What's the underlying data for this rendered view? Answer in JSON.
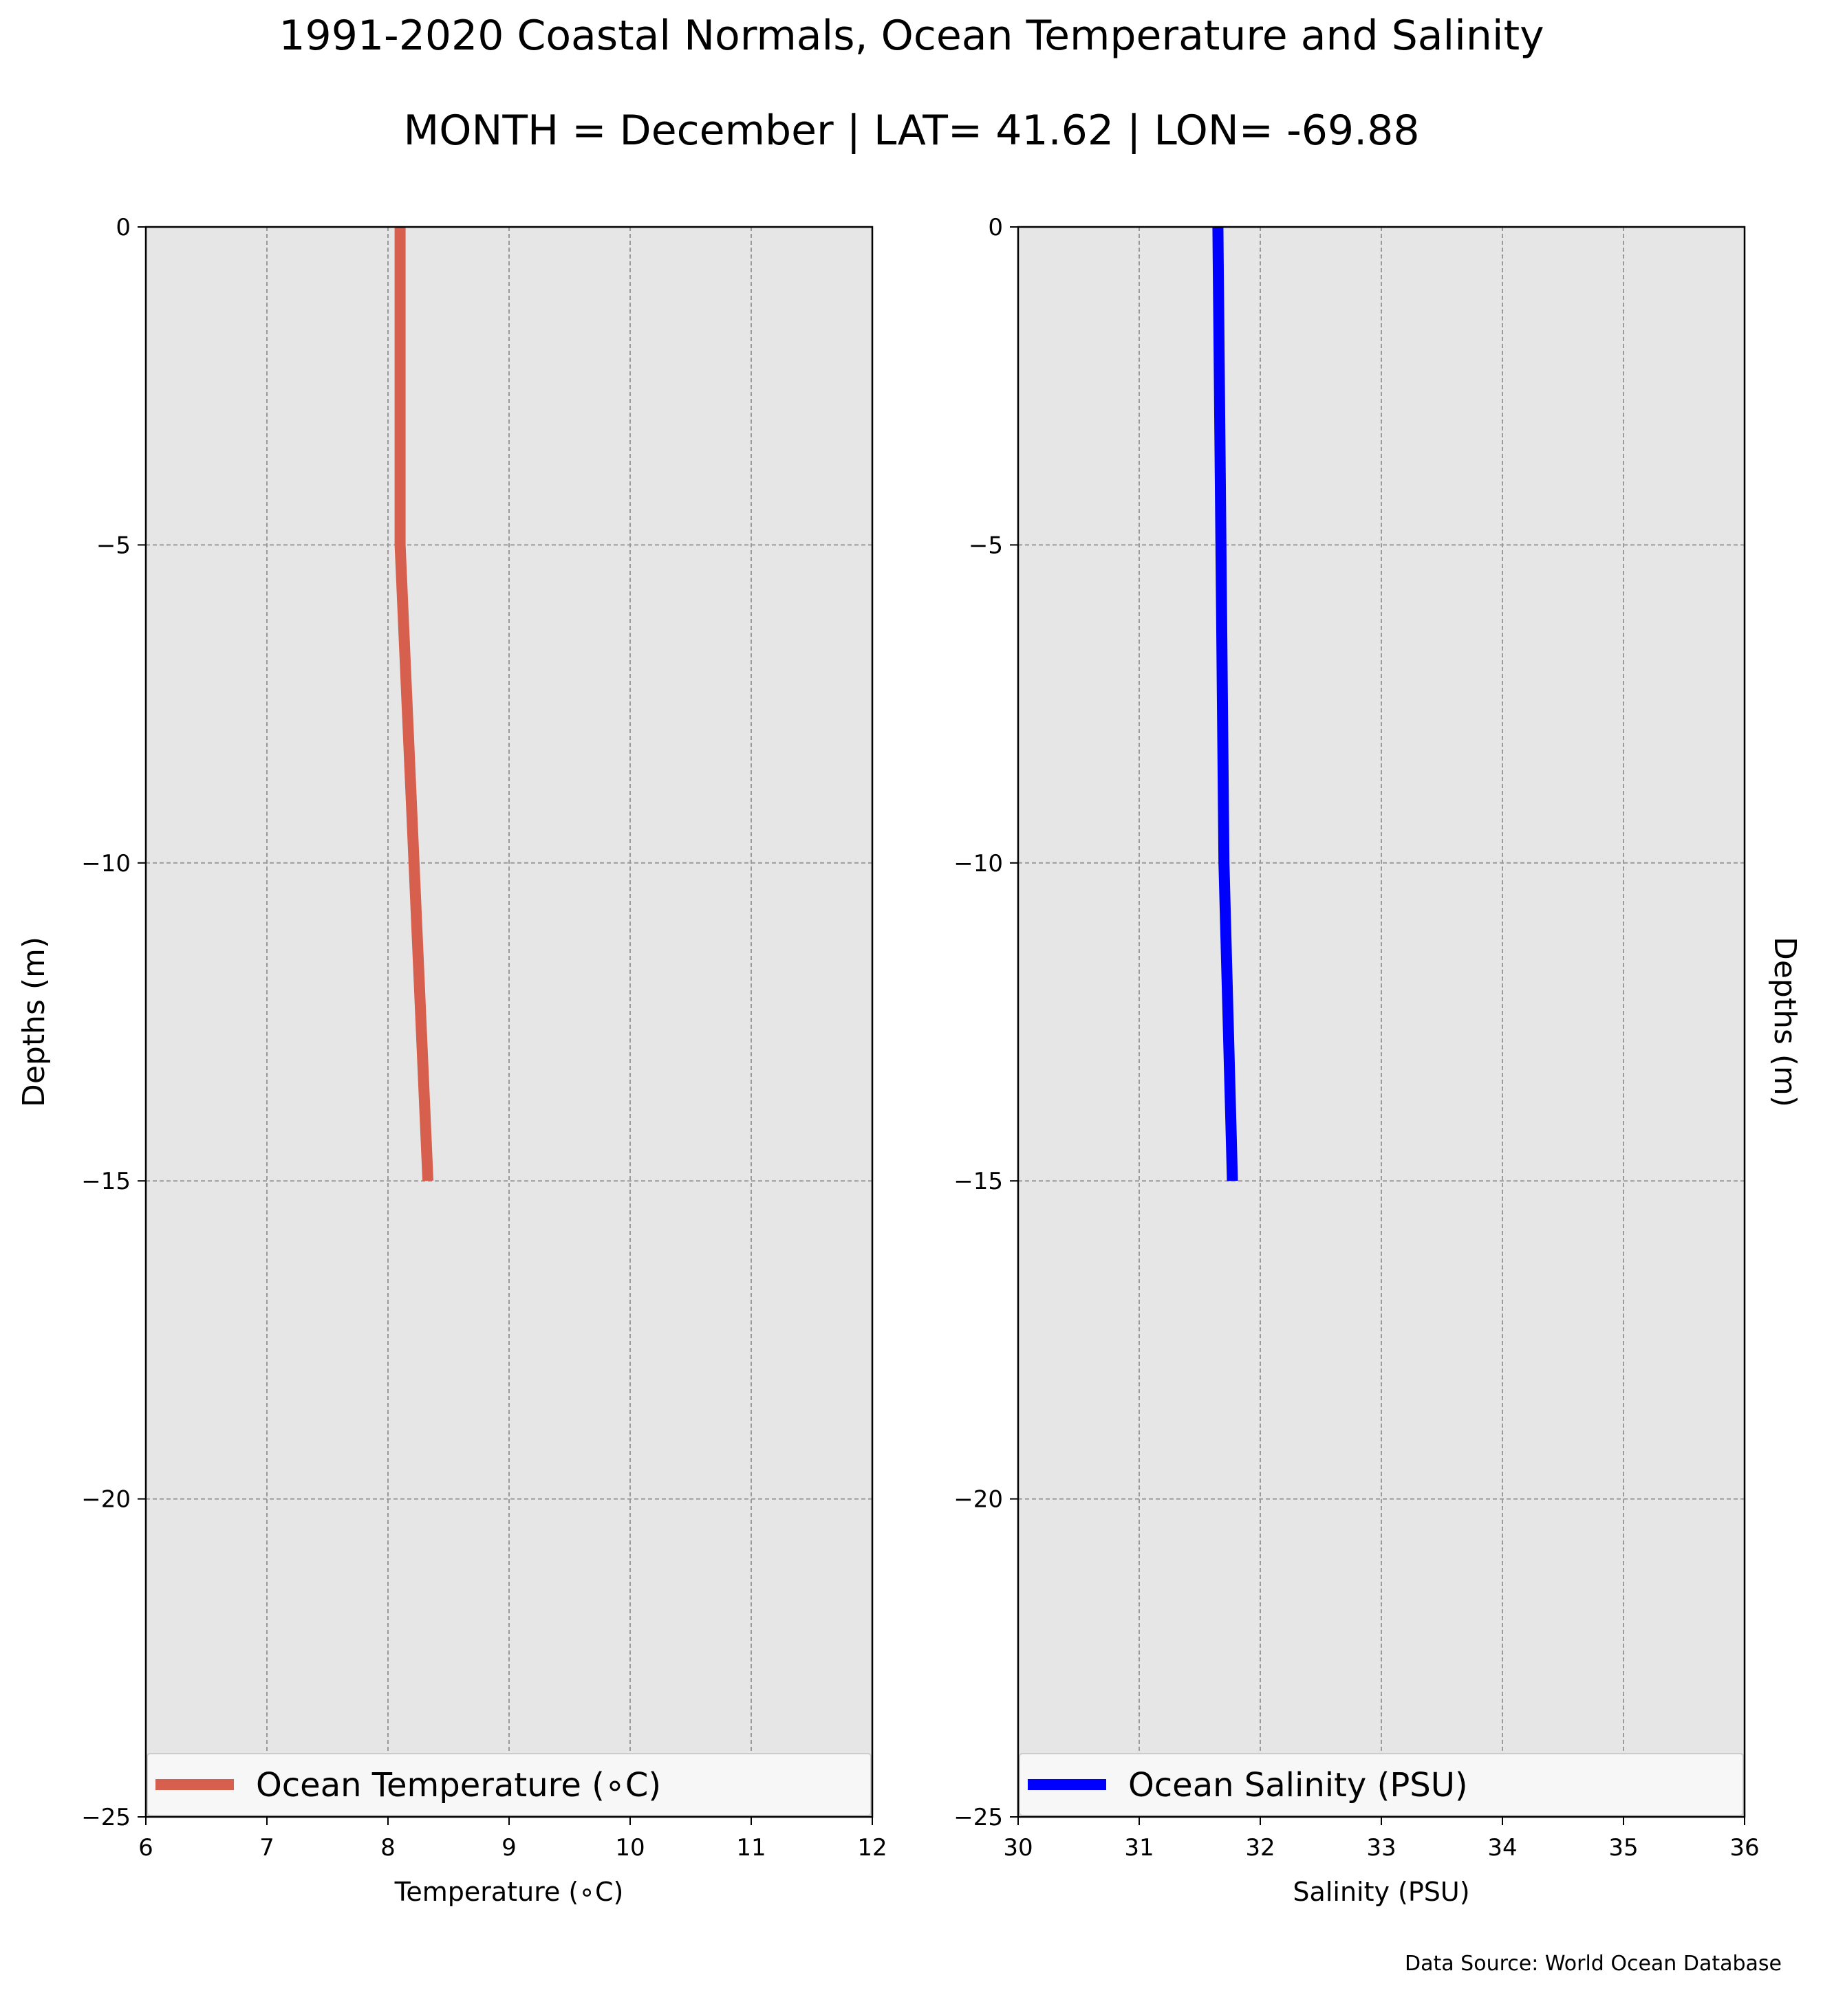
{
  "figure": {
    "title": "1991-2020 Coastal Normals, Ocean Temperature and Salinity",
    "subtitle": "MONTH = December | LAT= 41.62 | LON= -69.88",
    "source": "Data Source: World Ocean Database"
  },
  "chart_data": [
    {
      "type": "line",
      "orientation": "vertical-profile",
      "xlabel": "Temperature ($^\\circ$C)",
      "xlabel_display": "Temperature (∘C)",
      "ylabel": "Depths (m)",
      "xlim": [
        6,
        12
      ],
      "ylim": [
        -25,
        0
      ],
      "xticks": [
        "6",
        "7",
        "8",
        "9",
        "10",
        "11",
        "12"
      ],
      "yticks": [
        "0",
        "−5",
        "−10",
        "−15",
        "−20",
        "−25"
      ],
      "grid": true,
      "legend_position": "bottom",
      "series": [
        {
          "name": "Ocean Temperature (∘C)",
          "color": "#d6604d",
          "x": [
            8.1,
            8.1,
            8.33
          ],
          "y": [
            0,
            -5,
            -15
          ]
        }
      ]
    },
    {
      "type": "line",
      "orientation": "vertical-profile",
      "xlabel": "Salinity (PSU)",
      "ylabel": "Depths (m)",
      "xlim": [
        30,
        36
      ],
      "ylim": [
        -25,
        0
      ],
      "xticks": [
        "30",
        "31",
        "32",
        "33",
        "34",
        "35",
        "36"
      ],
      "yticks": [
        "0",
        "−5",
        "−10",
        "−15",
        "−20",
        "−25"
      ],
      "grid": true,
      "ylabel_side": "right",
      "legend_position": "bottom",
      "series": [
        {
          "name": "Ocean Salinity (PSU)",
          "color": "#0000ff",
          "x": [
            31.65,
            31.7,
            31.77
          ],
          "y": [
            0,
            -10,
            -15
          ]
        }
      ]
    }
  ]
}
